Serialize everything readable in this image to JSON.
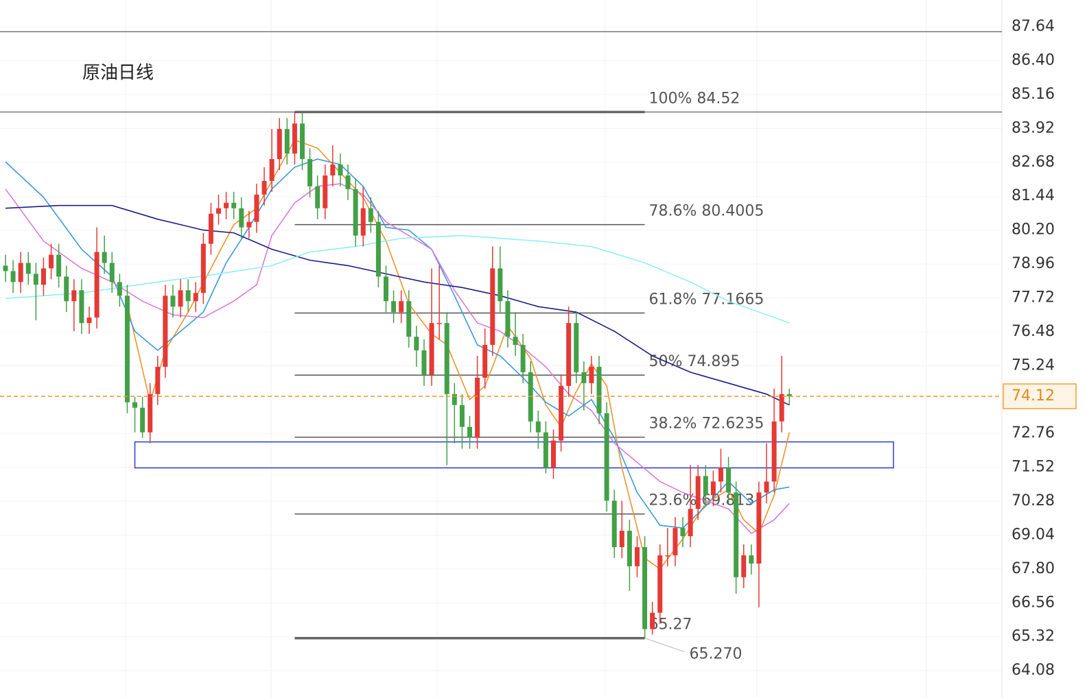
{
  "chart_data": {
    "type": "candlestick",
    "title": "原油日线",
    "ylim": [
      63.08,
      88.62
    ],
    "yticks": [
      {
        "value": 87.64,
        "label": "87.64"
      },
      {
        "value": 86.4,
        "label": "86.40"
      },
      {
        "value": 85.16,
        "label": "85.16"
      },
      {
        "value": 83.92,
        "label": "83.92"
      },
      {
        "value": 82.68,
        "label": "82.68"
      },
      {
        "value": 81.44,
        "label": "81.44"
      },
      {
        "value": 80.2,
        "label": "80.20"
      },
      {
        "value": 78.96,
        "label": "78.96"
      },
      {
        "value": 77.72,
        "label": "77.72"
      },
      {
        "value": 76.48,
        "label": "76.48"
      },
      {
        "value": 75.24,
        "label": "75.24"
      },
      {
        "value": 72.76,
        "label": "72.76"
      },
      {
        "value": 71.52,
        "label": "71.52"
      },
      {
        "value": 70.28,
        "label": "70.28"
      },
      {
        "value": 69.04,
        "label": "69.04"
      },
      {
        "value": 67.8,
        "label": "67.80"
      },
      {
        "value": 66.56,
        "label": "66.56"
      },
      {
        "value": 65.32,
        "label": "65.32"
      },
      {
        "value": 64.08,
        "label": "64.08"
      }
    ],
    "grid": true,
    "up_color": "#e53935",
    "down_color": "#43a047",
    "candles": [
      [
        78.9,
        79.3,
        78.3,
        78.7
      ],
      [
        78.7,
        79.1,
        77.9,
        78.3
      ],
      [
        78.3,
        79.4,
        77.9,
        79.0
      ],
      [
        79.0,
        79.4,
        78.2,
        78.6
      ],
      [
        78.6,
        79.0,
        76.9,
        78.2
      ],
      [
        78.2,
        79.2,
        77.8,
        78.8
      ],
      [
        78.8,
        79.7,
        78.4,
        79.3
      ],
      [
        79.3,
        79.7,
        78.1,
        78.5
      ],
      [
        78.5,
        78.9,
        77.2,
        77.6
      ],
      [
        77.6,
        78.4,
        76.5,
        78.0
      ],
      [
        78.0,
        78.4,
        76.4,
        76.8
      ],
      [
        76.8,
        77.4,
        76.4,
        77.0
      ],
      [
        77.0,
        80.3,
        76.6,
        79.4
      ],
      [
        79.4,
        80.0,
        78.6,
        79.0
      ],
      [
        79.0,
        79.4,
        77.9,
        78.3
      ],
      [
        78.3,
        78.6,
        77.4,
        77.8
      ],
      [
        77.8,
        78.2,
        73.5,
        73.9
      ],
      [
        73.9,
        74.1,
        72.8,
        73.7
      ],
      [
        73.7,
        74.1,
        72.6,
        72.8
      ],
      [
        72.8,
        74.6,
        72.4,
        74.2
      ],
      [
        74.2,
        75.6,
        73.8,
        75.2
      ],
      [
        75.2,
        78.2,
        74.8,
        77.8
      ],
      [
        77.8,
        78.2,
        77.0,
        77.4
      ],
      [
        77.4,
        78.4,
        77.0,
        78.0
      ],
      [
        78.0,
        78.4,
        77.2,
        77.6
      ],
      [
        77.6,
        78.3,
        77.2,
        77.9
      ],
      [
        77.9,
        80.1,
        77.5,
        79.7
      ],
      [
        79.7,
        81.2,
        79.3,
        80.8
      ],
      [
        80.8,
        81.5,
        80.4,
        81.0
      ],
      [
        81.0,
        81.6,
        80.6,
        81.2
      ],
      [
        81.2,
        81.6,
        80.6,
        81.0
      ],
      [
        81.0,
        81.4,
        79.9,
        80.3
      ],
      [
        80.3,
        80.9,
        79.9,
        80.5
      ],
      [
        80.5,
        81.9,
        80.1,
        81.5
      ],
      [
        81.5,
        82.5,
        81.1,
        82.0
      ],
      [
        82.0,
        83.9,
        81.6,
        82.8
      ],
      [
        82.8,
        84.3,
        82.4,
        83.9
      ],
      [
        83.9,
        84.3,
        82.6,
        83.0
      ],
      [
        83.0,
        84.52,
        82.6,
        84.1
      ],
      [
        84.1,
        84.5,
        82.4,
        82.8
      ],
      [
        82.8,
        83.2,
        81.4,
        81.8
      ],
      [
        81.8,
        82.2,
        80.6,
        81.0
      ],
      [
        81.0,
        82.6,
        80.6,
        82.2
      ],
      [
        82.2,
        83.3,
        81.8,
        82.6
      ],
      [
        82.6,
        83.0,
        81.8,
        82.2
      ],
      [
        82.2,
        82.6,
        81.3,
        81.7
      ],
      [
        81.7,
        82.1,
        79.6,
        80.0
      ],
      [
        80.0,
        81.8,
        79.6,
        81.0
      ],
      [
        81.0,
        81.4,
        80.1,
        80.5
      ],
      [
        80.5,
        80.9,
        78.1,
        78.5
      ],
      [
        78.5,
        78.9,
        77.2,
        77.6
      ],
      [
        77.6,
        78.0,
        76.8,
        77.2
      ],
      [
        77.2,
        78.0,
        76.8,
        77.6
      ],
      [
        77.6,
        78.0,
        75.9,
        76.3
      ],
      [
        76.3,
        76.7,
        75.2,
        75.8
      ],
      [
        75.8,
        76.2,
        74.5,
        74.9
      ],
      [
        74.9,
        78.8,
        74.5,
        76.8
      ],
      [
        76.8,
        78.9,
        76.2,
        76.8
      ],
      [
        76.8,
        77.2,
        71.6,
        74.2
      ],
      [
        74.2,
        74.6,
        72.4,
        73.8
      ],
      [
        73.8,
        74.2,
        72.2,
        73.0
      ],
      [
        73.0,
        73.4,
        72.2,
        72.6
      ],
      [
        72.6,
        75.6,
        72.2,
        74.8
      ],
      [
        74.8,
        76.6,
        74.4,
        76.0
      ],
      [
        76.0,
        79.6,
        75.6,
        78.8
      ],
      [
        78.8,
        79.6,
        77.2,
        77.6
      ],
      [
        77.6,
        78.0,
        75.9,
        76.3
      ],
      [
        76.3,
        77.2,
        75.6,
        76.0
      ],
      [
        76.0,
        76.4,
        74.6,
        75.0
      ],
      [
        75.0,
        75.4,
        72.8,
        73.2
      ],
      [
        73.2,
        73.6,
        72.2,
        72.8
      ],
      [
        72.8,
        73.2,
        71.3,
        71.5
      ],
      [
        71.5,
        72.9,
        71.1,
        72.5
      ],
      [
        72.5,
        74.9,
        72.1,
        74.5
      ],
      [
        74.5,
        77.4,
        74.1,
        76.8
      ],
      [
        76.8,
        77.2,
        74.6,
        75.0
      ],
      [
        75.0,
        75.4,
        73.6,
        74.6
      ],
      [
        74.6,
        75.6,
        74.2,
        75.2
      ],
      [
        75.2,
        75.6,
        73.1,
        73.5
      ],
      [
        73.5,
        73.9,
        69.9,
        70.3
      ],
      [
        70.3,
        70.7,
        68.2,
        68.6
      ],
      [
        68.6,
        70.3,
        68.2,
        69.2
      ],
      [
        69.2,
        69.6,
        67.0,
        67.9
      ],
      [
        67.9,
        69.0,
        67.5,
        68.6
      ],
      [
        68.6,
        69.0,
        65.27,
        65.6
      ],
      [
        65.6,
        66.6,
        65.4,
        66.2
      ],
      [
        66.2,
        68.7,
        65.8,
        68.3
      ],
      [
        68.3,
        69.3,
        67.9,
        68.3
      ],
      [
        68.3,
        69.7,
        67.9,
        69.3
      ],
      [
        69.3,
        69.7,
        68.6,
        69.0
      ],
      [
        69.0,
        71.6,
        68.6,
        70.0
      ],
      [
        70.0,
        71.6,
        69.6,
        71.2
      ],
      [
        71.2,
        71.6,
        70.1,
        70.5
      ],
      [
        70.5,
        71.4,
        70.1,
        71.0
      ],
      [
        71.0,
        72.2,
        70.6,
        71.5
      ],
      [
        71.5,
        71.9,
        70.2,
        70.6
      ],
      [
        70.6,
        71.0,
        66.9,
        67.5
      ],
      [
        67.5,
        68.7,
        67.1,
        68.3
      ],
      [
        68.3,
        68.7,
        67.6,
        68.0
      ],
      [
        68.0,
        71.0,
        66.4,
        70.6
      ],
      [
        70.6,
        72.4,
        70.2,
        71.0
      ],
      [
        71.0,
        74.4,
        70.6,
        73.2
      ],
      [
        73.2,
        75.6,
        72.8,
        74.2
      ],
      [
        74.2,
        74.4,
        73.8,
        74.12
      ]
    ],
    "series": [
      {
        "color": "#f0932b",
        "x": [
          16,
          19,
          21,
          24,
          27,
          30,
          33,
          36,
          38,
          41,
          44,
          47,
          50,
          53,
          56,
          58,
          61,
          63,
          64,
          66,
          69,
          71,
          73,
          75,
          77,
          79,
          81,
          84,
          86,
          89,
          92,
          95,
          97,
          99,
          101,
          103
        ],
        "values": [
          77.5,
          73.9,
          75.8,
          77.2,
          78.8,
          80.4,
          81.0,
          82.5,
          83.5,
          83.2,
          82.3,
          81.4,
          79.8,
          77.5,
          76.4,
          76.0,
          74.0,
          74.5,
          75.2,
          76.7,
          75.5,
          73.8,
          73.0,
          74.3,
          75.3,
          74.5,
          71.5,
          68.2,
          67.8,
          68.9,
          70.2,
          70.7,
          69.6,
          69.1,
          70.5,
          72.8
        ]
      },
      {
        "color": "#3a9ae0",
        "x": [
          0,
          5,
          10,
          14,
          17,
          20,
          23,
          26,
          29,
          32,
          35,
          38,
          41,
          44,
          47,
          50,
          53,
          56,
          59,
          62,
          65,
          68,
          71,
          74,
          77,
          80,
          83,
          86,
          89,
          92,
          95,
          98,
          101,
          103
        ],
        "values": [
          82.7,
          81.4,
          79.5,
          78.5,
          76.5,
          75.8,
          76.5,
          77.2,
          79.0,
          80.3,
          81.7,
          82.5,
          82.8,
          82.6,
          81.8,
          80.3,
          80.2,
          79.5,
          77.8,
          76.0,
          75.6,
          74.8,
          73.9,
          73.4,
          74.0,
          72.6,
          70.6,
          69.4,
          69.3,
          70.1,
          71.0,
          70.2,
          70.7,
          70.8
        ]
      },
      {
        "color": "#d97ad9",
        "x": [
          0,
          5,
          10,
          14,
          18,
          22,
          26,
          30,
          33,
          35,
          38,
          41,
          44,
          47,
          50,
          53,
          56,
          59,
          62,
          65,
          68,
          71,
          74,
          77,
          80,
          83,
          86,
          89,
          92,
          95,
          98,
          101,
          103
        ],
        "values": [
          81.7,
          79.8,
          78.8,
          78.3,
          77.6,
          77.1,
          77.0,
          77.6,
          78.2,
          80.0,
          81.2,
          81.8,
          81.9,
          81.5,
          80.5,
          80.0,
          79.5,
          78.0,
          76.8,
          76.5,
          75.9,
          75.2,
          74.2,
          73.6,
          72.4,
          71.7,
          71.0,
          70.6,
          70.3,
          70.0,
          69.1,
          69.6,
          70.2
        ]
      },
      {
        "color": "#1c1c8c",
        "x": [
          0,
          7,
          14,
          20,
          26,
          30,
          35,
          40,
          45,
          50,
          55,
          60,
          65,
          70,
          75,
          80,
          85,
          90,
          95,
          100,
          103
        ],
        "values": [
          81.0,
          81.1,
          81.1,
          80.6,
          80.2,
          80.1,
          79.5,
          79.1,
          78.9,
          78.6,
          78.3,
          78.1,
          77.8,
          77.4,
          77.2,
          76.5,
          75.6,
          75.0,
          74.6,
          74.2,
          73.8
        ]
      },
      {
        "color": "#8ef0f0",
        "x": [
          0,
          10,
          20,
          28,
          35,
          40,
          46,
          52,
          60,
          70,
          77,
          84,
          90,
          95,
          103
        ],
        "values": [
          77.7,
          77.9,
          78.3,
          78.6,
          78.9,
          79.4,
          79.6,
          79.9,
          80.0,
          79.8,
          79.6,
          79.0,
          78.3,
          77.6,
          76.8
        ]
      }
    ],
    "hlines": [
      87.46,
      84.52
    ],
    "fib_levels": [
      {
        "value": 84.52,
        "label": "100% 84.52"
      },
      {
        "value": 80.4005,
        "label": "78.6% 80.4005"
      },
      {
        "value": 77.1665,
        "label": "61.8% 77.1665"
      },
      {
        "value": 74.895,
        "label": "50% 74.895"
      },
      {
        "value": 72.6235,
        "label": "38.2% 72.6235"
      },
      {
        "value": 69.813,
        "label": "23.6% 69.813"
      },
      {
        "value": 65.27,
        "label": "65.27"
      }
    ],
    "low_annotation": {
      "value": 65.27,
      "label": "65.270"
    },
    "zone": {
      "low": 71.5,
      "high": 72.45
    },
    "last_price": {
      "value": 74.12,
      "label": "74.12"
    }
  }
}
